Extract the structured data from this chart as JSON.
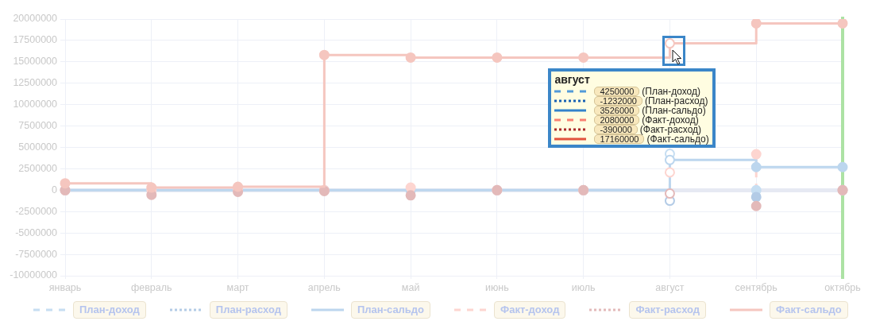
{
  "chart_data": {
    "type": "step",
    "categories": [
      "январь",
      "февраль",
      "март",
      "апрель",
      "май",
      "июнь",
      "июль",
      "август",
      "сентябрь",
      "октябрь"
    ],
    "series": [
      {
        "name": "План-доход",
        "type": "lollipop",
        "color": "#c6def2",
        "line_style": "dashed",
        "values": [
          null,
          null,
          null,
          null,
          null,
          null,
          null,
          4250000,
          0,
          null
        ]
      },
      {
        "name": "План-расход",
        "type": "lollipop",
        "color": "#b3cbe6",
        "line_style": "dotted",
        "values": [
          null,
          null,
          null,
          null,
          null,
          null,
          null,
          -1232000,
          -800000,
          0
        ]
      },
      {
        "name": "План-сальдо",
        "color": "#bcd6ee",
        "line_style": "solid",
        "values": [
          0,
          0,
          0,
          0,
          0,
          0,
          0,
          3526000,
          2700000,
          2700000
        ]
      },
      {
        "name": "Факт-доход",
        "type": "lollipop",
        "color": "#fdd5d0",
        "line_style": "dashed",
        "values": [
          0,
          0,
          0,
          0,
          300000,
          0,
          0,
          2080000,
          4200000,
          0
        ]
      },
      {
        "name": "Факт-расход",
        "type": "lollipop",
        "color": "#e3b9b9",
        "line_style": "dotted",
        "values": [
          0,
          -550000,
          -200000,
          -100000,
          -600000,
          0,
          0,
          -390000,
          -1850000,
          0
        ]
      },
      {
        "name": "Факт-сальдо",
        "color": "#f5c6bf",
        "line_style": "solid",
        "values": [
          800000,
          300000,
          400000,
          15800000,
          15500000,
          15500000,
          15500000,
          17160000,
          19500000,
          19500000
        ]
      }
    ],
    "ylim": [
      -10000000,
      20000000
    ],
    "yticks": [
      -10000000,
      -7500000,
      -5000000,
      -2500000,
      0,
      2500000,
      5000000,
      7500000,
      10000000,
      12500000,
      15000000,
      17500000,
      20000000
    ],
    "grid": true,
    "legend": "bottom",
    "marker": "circle",
    "ref_lines": [
      {
        "axis": "x",
        "value": "октябрь",
        "color": "#ace2a4"
      }
    ],
    "annotations": [
      "август",
      "4250000",
      "(План-доход)",
      "-1232000",
      "(План-расход)",
      "3526000",
      "(План-сальдо)",
      "2080000",
      "(Факт-доход)",
      "-390000",
      "(Факт-расход)",
      "17160000",
      "(Факт-сальдо)"
    ]
  }
}
